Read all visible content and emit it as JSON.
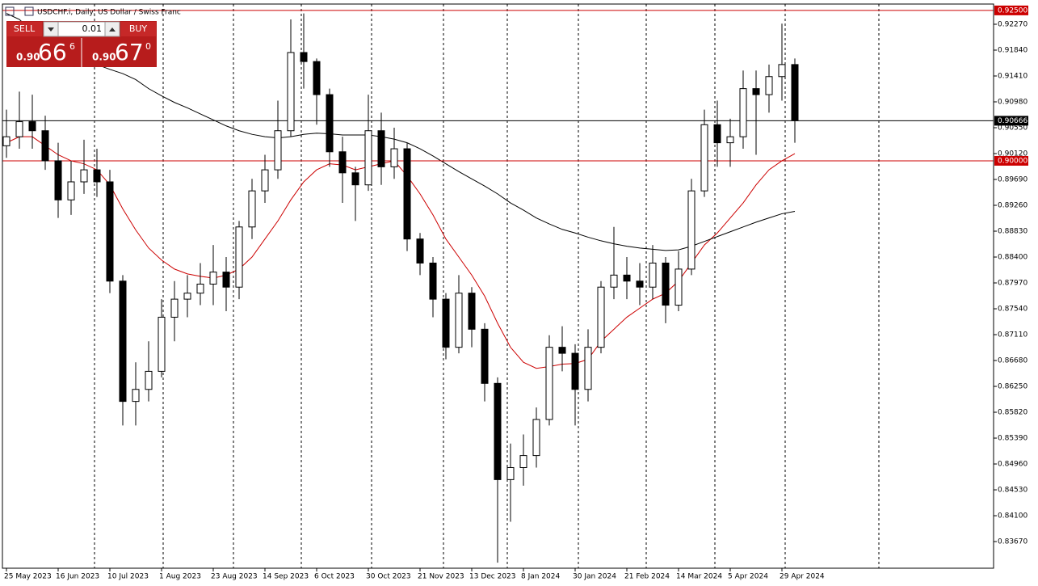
{
  "chart_data": {
    "type": "candlestick",
    "title": "USDCHF.i, Daily:  US Dollar / Swiss Franc",
    "categories": [
      "25 May 2023",
      null,
      null,
      null,
      "16 Jun 2023",
      null,
      null,
      null,
      "10 Jul 2023",
      null,
      null,
      null,
      "1 Aug 2023",
      null,
      null,
      null,
      "23 Aug 2023",
      null,
      null,
      null,
      "14 Sep 2023",
      null,
      null,
      null,
      "6 Oct 2023",
      null,
      null,
      null,
      "30 Oct 2023",
      null,
      null,
      null,
      "21 Nov 2023",
      null,
      null,
      null,
      "13 Dec 2023",
      null,
      null,
      null,
      "8 Jan 2024",
      null,
      null,
      null,
      "30 Jan 2024",
      null,
      null,
      null,
      "21 Feb 2024",
      null,
      null,
      null,
      "14 Mar 2024",
      null,
      null,
      null,
      "5 Apr 2024",
      null,
      null,
      null,
      "29 Apr 2024",
      null
    ],
    "open": [
      0.9025,
      0.904,
      0.9065,
      0.905,
      0.9,
      0.8935,
      0.8965,
      0.8985,
      0.8965,
      0.88,
      0.86,
      0.862,
      0.865,
      0.874,
      0.877,
      0.878,
      0.8795,
      0.8815,
      0.879,
      0.889,
      0.895,
      0.8985,
      0.905,
      0.918,
      0.9165,
      0.911,
      0.9015,
      0.898,
      0.896,
      0.905,
      0.899,
      0.902,
      0.887,
      0.883,
      0.877,
      0.869,
      0.878,
      0.872,
      0.863,
      0.847,
      0.849,
      0.851,
      0.857,
      0.869,
      0.868,
      0.862,
      0.869,
      0.879,
      0.881,
      0.88,
      0.879,
      0.883,
      0.876,
      0.882,
      0.895,
      0.906,
      0.903,
      0.904,
      0.912,
      0.911,
      0.914,
      0.916
    ],
    "high": [
      0.9085,
      0.9115,
      0.911,
      0.9075,
      0.903,
      0.9,
      0.9035,
      0.902,
      0.8985,
      0.881,
      0.8665,
      0.87,
      0.877,
      0.88,
      0.881,
      0.883,
      0.886,
      0.884,
      0.89,
      0.897,
      0.901,
      0.91,
      0.9235,
      0.9245,
      0.917,
      0.912,
      0.904,
      0.899,
      0.911,
      0.908,
      0.9055,
      0.903,
      0.888,
      0.884,
      0.878,
      0.881,
      0.879,
      0.873,
      0.864,
      0.853,
      0.8545,
      0.859,
      0.871,
      0.8725,
      0.8695,
      0.872,
      0.88,
      0.889,
      0.884,
      0.883,
      0.886,
      0.884,
      0.885,
      0.897,
      0.9085,
      0.91,
      0.907,
      0.915,
      0.915,
      0.916,
      0.9228,
      0.917
    ],
    "low": [
      0.9005,
      0.902,
      0.902,
      0.8985,
      0.8905,
      0.891,
      0.8945,
      0.894,
      0.878,
      0.856,
      0.856,
      0.86,
      0.864,
      0.87,
      0.874,
      0.876,
      0.876,
      0.875,
      0.877,
      0.887,
      0.893,
      0.897,
      0.904,
      0.912,
      0.906,
      0.899,
      0.893,
      0.89,
      0.895,
      0.896,
      0.897,
      0.885,
      0.881,
      0.874,
      0.867,
      0.868,
      0.869,
      0.86,
      0.8332,
      0.84,
      0.846,
      0.849,
      0.856,
      0.865,
      0.856,
      0.86,
      0.868,
      0.877,
      0.877,
      0.876,
      0.877,
      0.873,
      0.875,
      0.881,
      0.894,
      0.899,
      0.899,
      0.902,
      0.901,
      0.908,
      0.91,
      0.903
    ],
    "close": [
      0.904,
      0.9065,
      0.905,
      0.9,
      0.8935,
      0.8965,
      0.8985,
      0.8965,
      0.88,
      0.86,
      0.862,
      0.865,
      0.874,
      0.877,
      0.878,
      0.8795,
      0.8815,
      0.879,
      0.889,
      0.895,
      0.8985,
      0.905,
      0.918,
      0.9165,
      0.911,
      0.9015,
      0.898,
      0.896,
      0.905,
      0.899,
      0.902,
      0.887,
      0.883,
      0.877,
      0.869,
      0.878,
      0.872,
      0.863,
      0.847,
      0.849,
      0.851,
      0.857,
      0.869,
      0.868,
      0.862,
      0.869,
      0.879,
      0.881,
      0.88,
      0.879,
      0.883,
      0.876,
      0.882,
      0.895,
      0.906,
      0.903,
      0.904,
      0.912,
      0.911,
      0.914,
      0.916,
      0.9067
    ],
    "up_color": "#ffffff",
    "down_color": "#000000",
    "outline_color": "#000000",
    "lines": [
      {
        "color": "#cc0000",
        "values": [
          0.903,
          0.904,
          0.904,
          0.9025,
          0.901,
          0.9,
          0.8995,
          0.8985,
          0.896,
          0.892,
          0.8885,
          0.8855,
          0.8835,
          0.882,
          0.8812,
          0.8808,
          0.8805,
          0.881,
          0.882,
          0.884,
          0.887,
          0.89,
          0.8935,
          0.8965,
          0.8985,
          0.8995,
          0.8993,
          0.8985,
          0.899,
          0.8995,
          0.9,
          0.8975,
          0.8945,
          0.891,
          0.887,
          0.884,
          0.881,
          0.8775,
          0.873,
          0.869,
          0.8665,
          0.8655,
          0.8658,
          0.8662,
          0.8663,
          0.867,
          0.87,
          0.872,
          0.874,
          0.8755,
          0.877,
          0.878,
          0.88,
          0.883,
          0.886,
          0.888,
          0.8905,
          0.893,
          0.896,
          0.8985,
          0.9,
          0.9012
        ]
      },
      {
        "color": "#000000",
        "values": [
          0.9245,
          0.9235,
          0.9215,
          0.92,
          0.919,
          0.918,
          0.917,
          0.916,
          0.9152,
          0.9145,
          0.9135,
          0.912,
          0.9108,
          0.9097,
          0.9088,
          0.9078,
          0.9068,
          0.9058,
          0.905,
          0.9044,
          0.904,
          0.9038,
          0.904,
          0.9044,
          0.9046,
          0.9045,
          0.9043,
          0.9043,
          0.9043,
          0.904,
          0.9036,
          0.903,
          0.902,
          0.9008,
          0.8995,
          0.8982,
          0.897,
          0.8958,
          0.8945,
          0.893,
          0.8918,
          0.8905,
          0.8895,
          0.8886,
          0.888,
          0.8873,
          0.8867,
          0.8862,
          0.8858,
          0.8855,
          0.8853,
          0.8851,
          0.8852,
          0.8858,
          0.8866,
          0.8874,
          0.8882,
          0.889,
          0.8898,
          0.8905,
          0.8912,
          0.8916
        ]
      }
    ],
    "levels": [
      {
        "value": 0.925,
        "label": "0.92500",
        "color": "#cc0000"
      },
      {
        "value": 0.9,
        "label": "0.90000",
        "color": "#cc0000"
      },
      {
        "value": 0.90666,
        "label": "0.90666",
        "color": "#000000"
      }
    ],
    "ylim": [
      0.83227,
      0.92606
    ],
    "yticks": [
      {
        "value": 0.9227,
        "label": "0.92270"
      },
      {
        "value": 0.9184,
        "label": "0.91840"
      },
      {
        "value": 0.9141,
        "label": "0.91410"
      },
      {
        "value": 0.9098,
        "label": "0.90980"
      },
      {
        "value": 0.9055,
        "label": "0.90550"
      },
      {
        "value": 0.9012,
        "label": "0.90120"
      },
      {
        "value": 0.8969,
        "label": "0.89690"
      },
      {
        "value": 0.8926,
        "label": "0.89260"
      },
      {
        "value": 0.8883,
        "label": "0.88830"
      },
      {
        "value": 0.884,
        "label": "0.88400"
      },
      {
        "value": 0.8797,
        "label": "0.87970"
      },
      {
        "value": 0.8754,
        "label": "0.87540"
      },
      {
        "value": 0.8711,
        "label": "0.87110"
      },
      {
        "value": 0.8668,
        "label": "0.86680"
      },
      {
        "value": 0.8625,
        "label": "0.86250"
      },
      {
        "value": 0.8582,
        "label": "0.85820"
      },
      {
        "value": 0.8539,
        "label": "0.85390"
      },
      {
        "value": 0.8496,
        "label": "0.84960"
      },
      {
        "value": 0.8453,
        "label": "0.84530"
      },
      {
        "value": 0.841,
        "label": "0.84100"
      },
      {
        "value": 0.8367,
        "label": "0.83670"
      }
    ]
  },
  "trade_panel": {
    "sell": "SELL",
    "buy": "BUY",
    "volume": "0.01",
    "sell_prefix": "0.90",
    "sell_big": "66",
    "sell_small": "6",
    "buy_prefix": "0.90",
    "buy_big": "67",
    "buy_small": "0"
  }
}
